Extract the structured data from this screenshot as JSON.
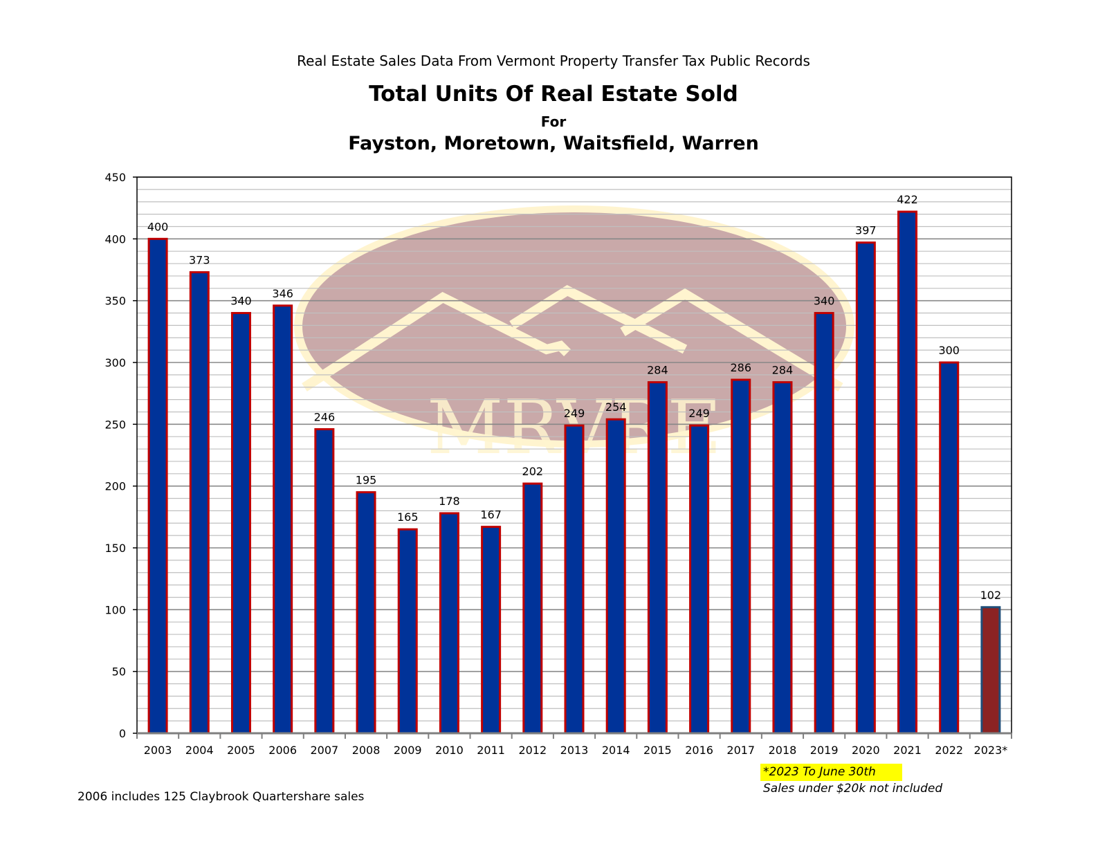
{
  "page": {
    "supertitle": "Real Estate Sales Data From Vermont Property Transfer Tax Public Records",
    "title": "Total Units Of Real Estate Sold",
    "for_line": "For",
    "towns": "Fayston, Moretown, Waitsfield, Warren",
    "footnote_left": "2006 includes 125 Claybrook Quartershare sales",
    "footnote_highlight": "*2023 To June 30th",
    "footnote_exclusion": "Sales under $20k not included",
    "watermark_text": "MRVRE"
  },
  "colors": {
    "bar_fill": "#003399",
    "bar_border": "#c00000",
    "partial_bar_fill": "#8b2323",
    "partial_bar_border": "#1f4e79",
    "watermark": "#c9a9a9",
    "highlight": "#ffff00"
  },
  "chart_data": {
    "type": "bar",
    "title": "Total Units Of Real Estate Sold",
    "xlabel": "",
    "ylabel": "",
    "categories": [
      "2003",
      "2004",
      "2005",
      "2006",
      "2007",
      "2008",
      "2009",
      "2010",
      "2011",
      "2012",
      "2013",
      "2014",
      "2015",
      "2016",
      "2017",
      "2018",
      "2019",
      "2020",
      "2021",
      "2022",
      "2023*"
    ],
    "values": [
      400,
      373,
      340,
      346,
      246,
      195,
      165,
      178,
      167,
      202,
      249,
      254,
      284,
      249,
      286,
      284,
      340,
      397,
      422,
      300,
      102
    ],
    "ylim": [
      0,
      450
    ],
    "yticks": [
      0,
      50,
      100,
      150,
      200,
      250,
      300,
      350,
      400,
      450
    ],
    "grid": true,
    "legend": "none"
  }
}
